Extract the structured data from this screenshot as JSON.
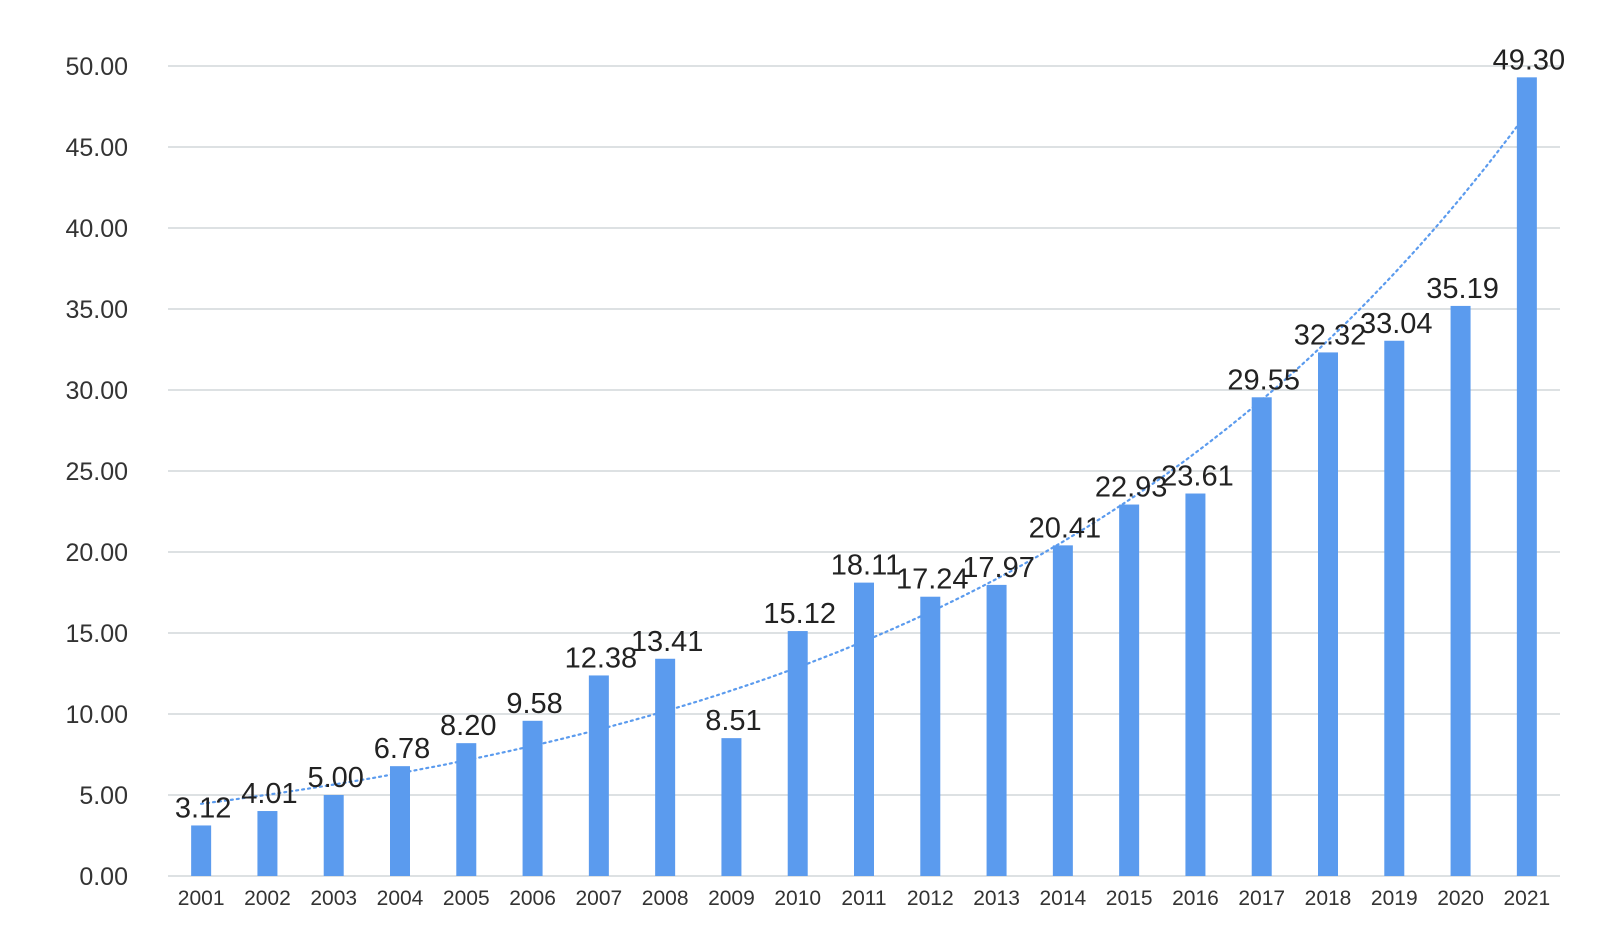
{
  "chart_data": {
    "type": "bar",
    "title": "",
    "xlabel": "",
    "ylabel": "",
    "ylim": [
      0,
      50
    ],
    "ytick_step": 5,
    "ytick_labels": [
      "0.00",
      "5.00",
      "10.00",
      "15.00",
      "20.00",
      "25.00",
      "30.00",
      "35.00",
      "40.00",
      "45.00",
      "50.00"
    ],
    "grid": true,
    "legend": "none",
    "categories": [
      "2001",
      "2002",
      "2003",
      "2004",
      "2005",
      "2006",
      "2007",
      "2008",
      "2009",
      "2010",
      "2011",
      "2012",
      "2013",
      "2014",
      "2015",
      "2016",
      "2017",
      "2018",
      "2019",
      "2020",
      "2021"
    ],
    "values": [
      3.12,
      4.01,
      5.0,
      6.78,
      8.2,
      9.58,
      12.38,
      13.41,
      8.51,
      15.12,
      18.11,
      17.24,
      17.97,
      20.41,
      22.93,
      23.61,
      29.55,
      32.32,
      33.04,
      35.19,
      49.3
    ],
    "value_labels": [
      "3.12",
      "4.01",
      "5.00",
      "6.78",
      "8.20",
      "9.58",
      "12.38",
      "13.41",
      "8.51",
      "15.12",
      "18.11",
      "17.24",
      "17.97",
      "20.41",
      "22.93",
      "23.61",
      "29.55",
      "32.32",
      "33.04",
      "35.19",
      "49.30"
    ],
    "trendline": {
      "type": "exponential",
      "style": "dotted"
    },
    "colors": {
      "bar": "#5b9bee",
      "trendline": "#5b9bee",
      "grid": "#dde1e3",
      "text": "#222222"
    }
  }
}
